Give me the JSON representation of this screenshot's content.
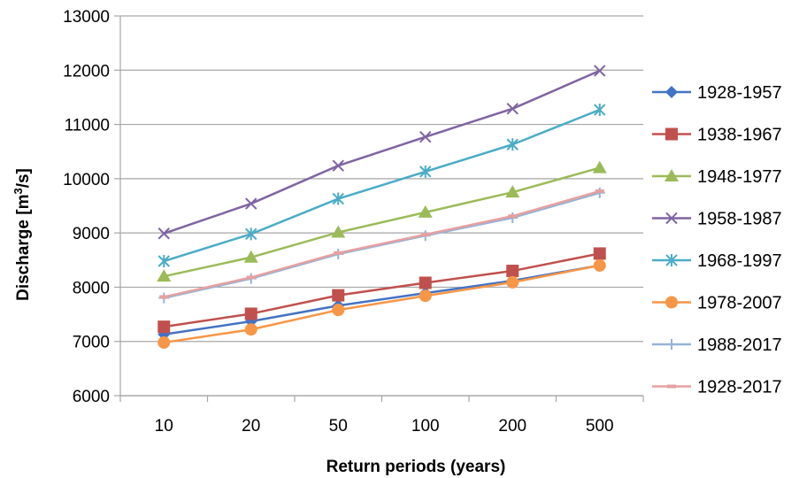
{
  "chart_data": {
    "type": "line",
    "xlabel": "Return periods (years)",
    "ylabel_main": "Discharge [m",
    "ylabel_sup": "3",
    "ylabel_tail": "/s]",
    "categories": [
      "10",
      "20",
      "50",
      "100",
      "200",
      "500"
    ],
    "ylim": [
      6000,
      13000
    ],
    "yticks": [
      "6000",
      "7000",
      "8000",
      "9000",
      "10000",
      "11000",
      "12000",
      "13000"
    ],
    "grid": "horizontal",
    "legend_position": "right",
    "series": [
      {
        "name": "1928-1957",
        "color": "#4472C4",
        "marker": "diamond",
        "values": [
          7130,
          7370,
          7660,
          7890,
          8120,
          8400
        ]
      },
      {
        "name": "1938-1967",
        "color": "#C0504D",
        "marker": "square",
        "values": [
          7270,
          7510,
          7850,
          8080,
          8300,
          8620
        ]
      },
      {
        "name": "1948-1977",
        "color": "#9BBB59",
        "marker": "triangle",
        "values": [
          8200,
          8550,
          9010,
          9380,
          9750,
          10200
        ]
      },
      {
        "name": "1958-1987",
        "color": "#8064A2",
        "marker": "x",
        "values": [
          8990,
          9540,
          10240,
          10770,
          11290,
          11990
        ]
      },
      {
        "name": "1968-1997",
        "color": "#4BACC6",
        "marker": "star",
        "values": [
          8480,
          8980,
          9630,
          10130,
          10630,
          11270
        ]
      },
      {
        "name": "1978-2007",
        "color": "#F79646",
        "marker": "circle",
        "values": [
          6980,
          7220,
          7580,
          7840,
          8090,
          8400
        ]
      },
      {
        "name": "1988-2017",
        "color": "#95B3D7",
        "marker": "plus",
        "values": [
          7800,
          8160,
          8610,
          8950,
          9280,
          9740
        ]
      },
      {
        "name": "1928-2017",
        "color": "#E6A0A0",
        "marker": "dash",
        "values": [
          7820,
          8180,
          8630,
          8970,
          9310,
          9770
        ]
      }
    ]
  }
}
